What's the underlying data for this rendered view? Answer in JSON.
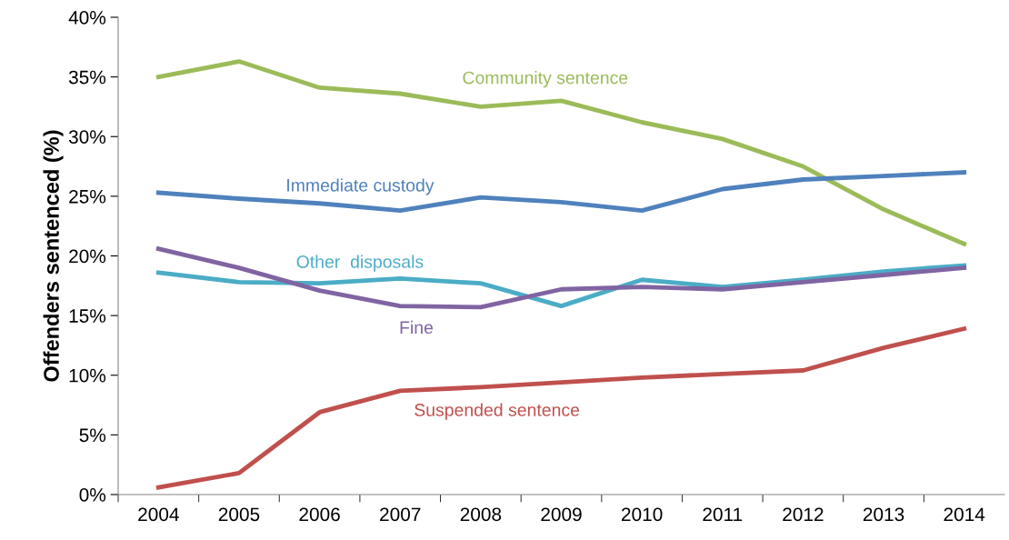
{
  "chart_data": {
    "type": "line",
    "ylabel": "Offenders sentenced (%)",
    "categories": [
      "2004",
      "2005",
      "2006",
      "2007",
      "2008",
      "2009",
      "2010",
      "2011",
      "2012",
      "2013",
      "2014"
    ],
    "series": [
      {
        "name": "Community sentence",
        "color": "#9bbb59",
        "values": [
          35.0,
          36.3,
          34.1,
          33.6,
          32.5,
          33.0,
          31.2,
          29.8,
          27.5,
          23.9,
          21.0
        ]
      },
      {
        "name": "Immediate custody",
        "color": "#4f81bd",
        "values": [
          25.3,
          24.8,
          24.4,
          23.8,
          24.9,
          24.5,
          23.8,
          25.6,
          26.4,
          26.7,
          27.0
        ]
      },
      {
        "name": "Other  disposals",
        "color": "#4bacc6",
        "values": [
          18.6,
          17.8,
          17.7,
          18.1,
          17.7,
          15.8,
          18.0,
          17.4,
          18.0,
          18.7,
          19.2
        ]
      },
      {
        "name": "Fine",
        "color": "#8064a2",
        "values": [
          20.6,
          19.0,
          17.1,
          15.8,
          15.7,
          17.2,
          17.4,
          17.2,
          17.8,
          18.4,
          19.0
        ]
      },
      {
        "name": "Suspended sentence",
        "color": "#c0504d",
        "values": [
          0.6,
          1.8,
          6.9,
          8.7,
          9.0,
          9.4,
          9.8,
          10.1,
          10.4,
          12.3,
          13.9
        ]
      }
    ],
    "ylim": [
      0,
      40
    ],
    "yticks": [
      {
        "value": 0,
        "label": "0%"
      },
      {
        "value": 5,
        "label": "5%"
      },
      {
        "value": 10,
        "label": "10%"
      },
      {
        "value": 15,
        "label": "15%"
      },
      {
        "value": 20,
        "label": "20%"
      },
      {
        "value": 25,
        "label": "25%"
      },
      {
        "value": 30,
        "label": "30%"
      },
      {
        "value": 35,
        "label": "35%"
      },
      {
        "value": 40,
        "label": "40%"
      }
    ],
    "grid": false,
    "legend": false,
    "marker": "none",
    "line_style": "solid"
  }
}
